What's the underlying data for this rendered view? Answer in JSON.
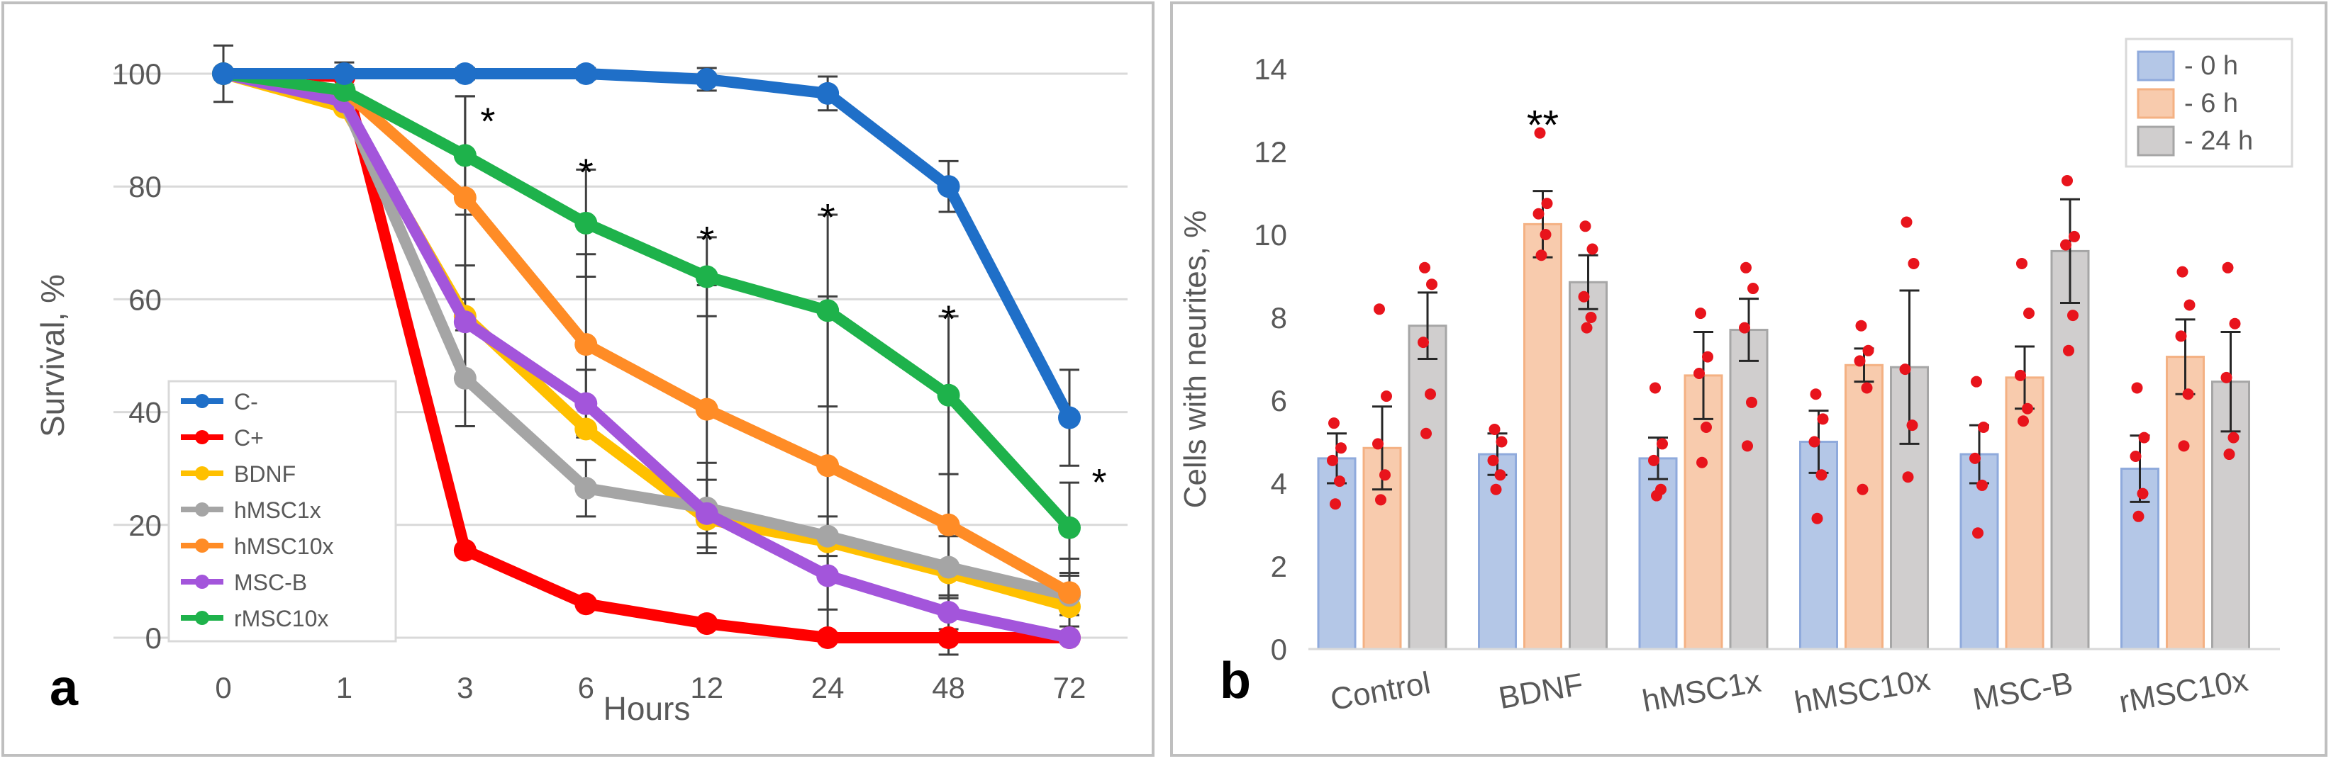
{
  "panels": {
    "a": {
      "letter": "a",
      "legend": [
        "C-",
        "C+",
        "BDNF",
        "hMSC1x",
        "hMSC10x",
        "MSC-B",
        "rMSC10x"
      ]
    },
    "b": {
      "letter": "b",
      "legend": [
        "- 0 h",
        "- 6 h",
        "- 24 h"
      ]
    }
  },
  "chart_data": [
    {
      "type": "line",
      "panel": "a",
      "title": "",
      "xlabel": "Hours",
      "ylabel": "Survival, %",
      "categories": [
        "0",
        "1",
        "3",
        "6",
        "12",
        "24",
        "48",
        "72"
      ],
      "ylim": [
        0,
        100
      ],
      "yticks": [
        0,
        20,
        40,
        60,
        80,
        100
      ],
      "grid": true,
      "legend_position": "bottom-left",
      "series": [
        {
          "name": "C-",
          "color": "#1f6fc8",
          "values": [
            100,
            100,
            100,
            100,
            99,
            96.5,
            80,
            39
          ],
          "err": [
            5,
            2,
            1,
            1,
            2,
            3,
            4.5,
            8.5
          ]
        },
        {
          "name": "C+",
          "color": "#ff0000",
          "values": [
            100,
            99.5,
            15.5,
            6,
            2.5,
            0,
            0,
            0
          ],
          "err": [
            0,
            1.5,
            0,
            0,
            0,
            0,
            0,
            0
          ]
        },
        {
          "name": "BDNF",
          "color": "#ffc000",
          "values": [
            100,
            94,
            57,
            37,
            21,
            17,
            11.5,
            5.5
          ],
          "err": [
            0,
            0,
            0,
            0,
            0,
            0,
            0,
            0
          ]
        },
        {
          "name": "hMSC1x",
          "color": "#a5a5a5",
          "values": [
            100,
            95,
            46,
            26.5,
            23,
            18,
            12.5,
            7.5
          ],
          "err": [
            0,
            1,
            8.5,
            5,
            8,
            3.5,
            5.5,
            3.5
          ]
        },
        {
          "name": "hMSC10x",
          "color": "#ff8c26",
          "values": [
            100,
            97,
            78,
            52,
            40.5,
            30.5,
            20,
            8
          ],
          "err": [
            0,
            1,
            18,
            16,
            22,
            30,
            23,
            6
          ]
        },
        {
          "name": "MSC-B",
          "color": "#a355db",
          "values": [
            100,
            95,
            56,
            41.5,
            22,
            11,
            4.5,
            0
          ],
          "err": [
            0,
            0,
            10,
            6,
            6,
            6,
            3,
            0
          ]
        },
        {
          "name": "rMSC10x",
          "color": "#1eb24b",
          "values": [
            100,
            97,
            85.5,
            73.5,
            64,
            58,
            43,
            19.5
          ],
          "err": [
            0,
            0,
            10.5,
            9.5,
            7,
            17,
            14,
            8
          ]
        }
      ],
      "annotations": [
        {
          "category": "3",
          "y": 93,
          "text": "*"
        },
        {
          "category": "6",
          "y": 84,
          "text": "*"
        },
        {
          "category": "12",
          "y": 72,
          "text": "*"
        },
        {
          "category": "24",
          "y": 76,
          "text": "*"
        },
        {
          "category": "48",
          "y": 58,
          "text": "*"
        },
        {
          "category": "72",
          "y": 29,
          "text": "*"
        }
      ]
    },
    {
      "type": "bar",
      "panel": "b",
      "title": "",
      "xlabel": "",
      "ylabel": "Cells with neurites, %",
      "categories": [
        "Control",
        "BDNF",
        "hMSC1x",
        "hMSC10x",
        "MSC-B",
        "rMSC10x"
      ],
      "ylim": [
        0,
        14
      ],
      "yticks": [
        0,
        2,
        4,
        6,
        8,
        10,
        12,
        14
      ],
      "grid": false,
      "legend_position": "top-right",
      "series": [
        {
          "name": "- 0 h",
          "color": "#b4c7e7",
          "edge": "#8faadc",
          "values": [
            4.6,
            4.7,
            4.6,
            5.0,
            4.7,
            4.35
          ],
          "err": [
            0.6,
            0.5,
            0.5,
            0.75,
            0.7,
            0.8
          ],
          "points": [
            [
              5.45,
              4.85,
              4.55,
              4.05,
              3.5
            ],
            [
              5.3,
              5.0,
              4.55,
              4.2,
              3.85
            ],
            [
              6.3,
              4.95,
              4.55,
              3.85,
              3.7
            ],
            [
              6.15,
              5.55,
              5.0,
              4.2,
              3.15
            ],
            [
              6.45,
              5.35,
              4.6,
              3.95,
              2.8
            ],
            [
              6.3,
              5.1,
              4.65,
              3.75,
              3.2
            ]
          ]
        },
        {
          "name": "- 6 h",
          "color": "#f8cbad",
          "edge": "#f4b183",
          "values": [
            4.85,
            10.25,
            6.6,
            6.85,
            6.55,
            7.05
          ],
          "err": [
            1.0,
            0.8,
            1.05,
            0.4,
            0.75,
            0.9
          ],
          "points": [
            [
              8.2,
              6.1,
              4.95,
              4.2,
              3.6
            ],
            [
              12.45,
              10.75,
              10.5,
              10.0,
              9.5
            ],
            [
              8.1,
              7.05,
              6.65,
              5.35,
              4.5
            ],
            [
              7.8,
              7.2,
              6.95,
              6.3,
              3.85
            ],
            [
              9.3,
              8.1,
              6.6,
              5.8,
              5.5
            ],
            [
              9.1,
              8.3,
              7.55,
              6.15,
              4.9
            ]
          ]
        },
        {
          "name": "- 24 h",
          "color": "#d0cece",
          "edge": "#a6a6a6",
          "values": [
            7.8,
            8.85,
            7.7,
            6.8,
            9.6,
            6.45
          ],
          "err": [
            0.8,
            0.65,
            0.75,
            1.85,
            1.25,
            1.2
          ],
          "points": [
            [
              9.2,
              8.8,
              7.4,
              6.15,
              5.2
            ],
            [
              10.2,
              9.65,
              8.5,
              8.0,
              7.75
            ],
            [
              9.2,
              8.7,
              7.75,
              5.95,
              4.9
            ],
            [
              10.3,
              9.3,
              6.75,
              5.4,
              4.15
            ],
            [
              11.3,
              9.95,
              9.75,
              8.05,
              7.2
            ],
            [
              9.2,
              7.85,
              6.55,
              5.1,
              4.7
            ]
          ]
        }
      ],
      "annotations": [
        {
          "category": "BDNF",
          "series": "- 6 h",
          "y": 12.9,
          "text": "**"
        }
      ]
    }
  ]
}
